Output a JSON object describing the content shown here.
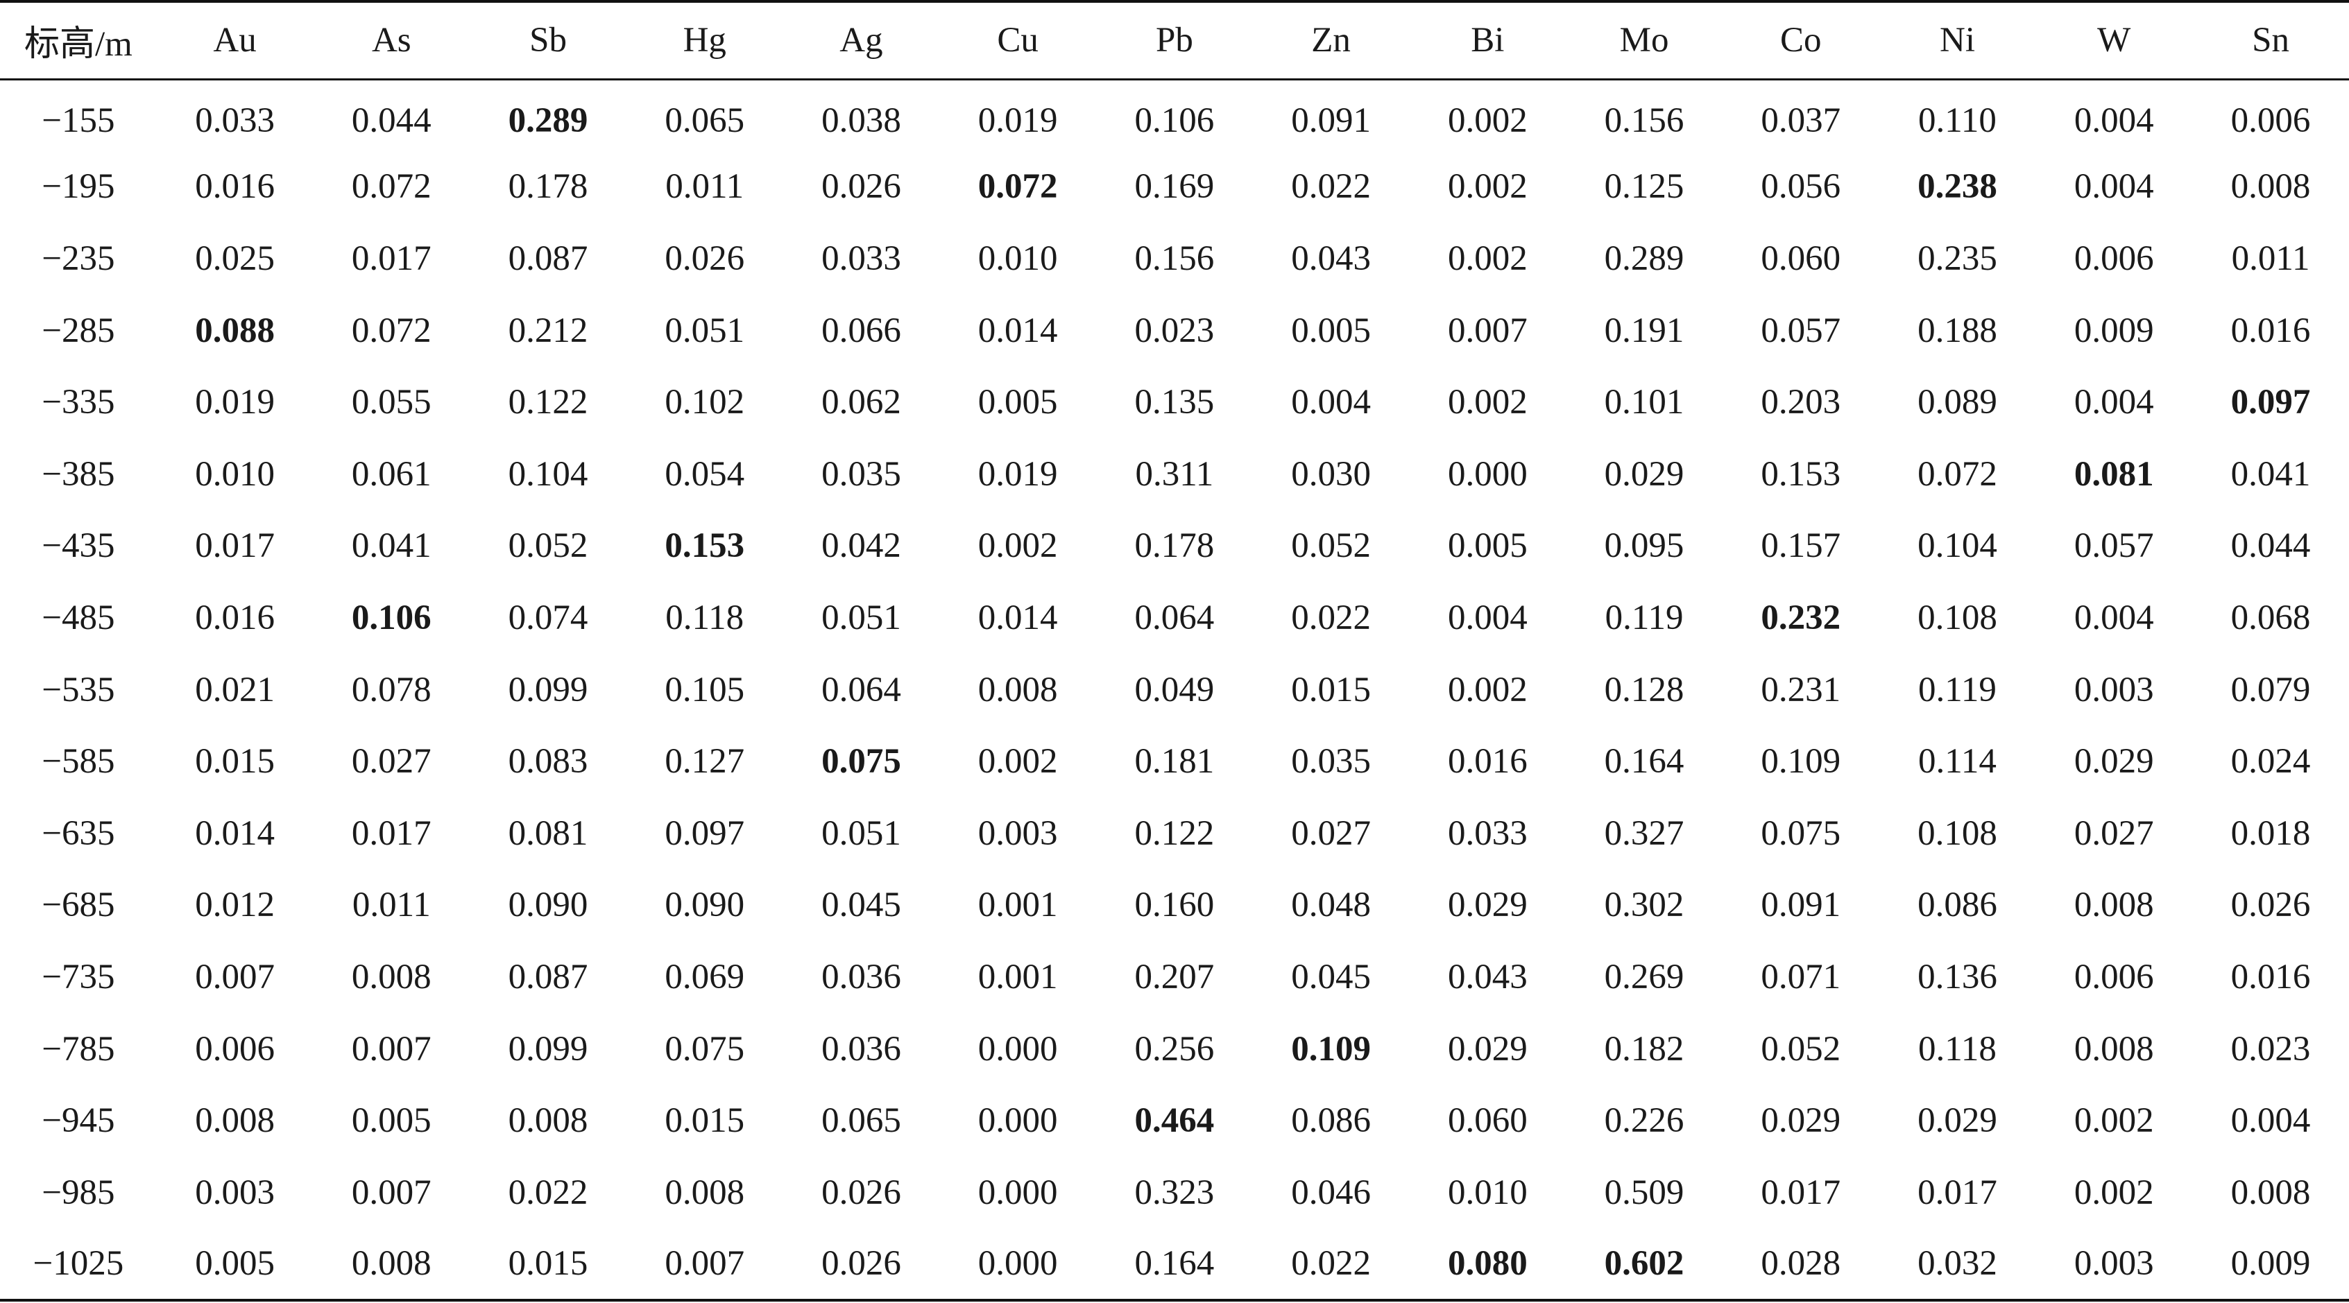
{
  "table": {
    "headers": [
      "标高/m",
      "Au",
      "As",
      "Sb",
      "Hg",
      "Ag",
      "Cu",
      "Pb",
      "Zn",
      "Bi",
      "Mo",
      "Co",
      "Ni",
      "W",
      "Sn"
    ],
    "rows": [
      [
        "−155",
        "0.033",
        "0.044",
        "0.289",
        "0.065",
        "0.038",
        "0.019",
        "0.106",
        "0.091",
        "0.002",
        "0.156",
        "0.037",
        "0.110",
        "0.004",
        "0.006"
      ],
      [
        "−195",
        "0.016",
        "0.072",
        "0.178",
        "0.011",
        "0.026",
        "0.072",
        "0.169",
        "0.022",
        "0.002",
        "0.125",
        "0.056",
        "0.238",
        "0.004",
        "0.008"
      ],
      [
        "−235",
        "0.025",
        "0.017",
        "0.087",
        "0.026",
        "0.033",
        "0.010",
        "0.156",
        "0.043",
        "0.002",
        "0.289",
        "0.060",
        "0.235",
        "0.006",
        "0.011"
      ],
      [
        "−285",
        "0.088",
        "0.072",
        "0.212",
        "0.051",
        "0.066",
        "0.014",
        "0.023",
        "0.005",
        "0.007",
        "0.191",
        "0.057",
        "0.188",
        "0.009",
        "0.016"
      ],
      [
        "−335",
        "0.019",
        "0.055",
        "0.122",
        "0.102",
        "0.062",
        "0.005",
        "0.135",
        "0.004",
        "0.002",
        "0.101",
        "0.203",
        "0.089",
        "0.004",
        "0.097"
      ],
      [
        "−385",
        "0.010",
        "0.061",
        "0.104",
        "0.054",
        "0.035",
        "0.019",
        "0.311",
        "0.030",
        "0.000",
        "0.029",
        "0.153",
        "0.072",
        "0.081",
        "0.041"
      ],
      [
        "−435",
        "0.017",
        "0.041",
        "0.052",
        "0.153",
        "0.042",
        "0.002",
        "0.178",
        "0.052",
        "0.005",
        "0.095",
        "0.157",
        "0.104",
        "0.057",
        "0.044"
      ],
      [
        "−485",
        "0.016",
        "0.106",
        "0.074",
        "0.118",
        "0.051",
        "0.014",
        "0.064",
        "0.022",
        "0.004",
        "0.119",
        "0.232",
        "0.108",
        "0.004",
        "0.068"
      ],
      [
        "−535",
        "0.021",
        "0.078",
        "0.099",
        "0.105",
        "0.064",
        "0.008",
        "0.049",
        "0.015",
        "0.002",
        "0.128",
        "0.231",
        "0.119",
        "0.003",
        "0.079"
      ],
      [
        "−585",
        "0.015",
        "0.027",
        "0.083",
        "0.127",
        "0.075",
        "0.002",
        "0.181",
        "0.035",
        "0.016",
        "0.164",
        "0.109",
        "0.114",
        "0.029",
        "0.024"
      ],
      [
        "−635",
        "0.014",
        "0.017",
        "0.081",
        "0.097",
        "0.051",
        "0.003",
        "0.122",
        "0.027",
        "0.033",
        "0.327",
        "0.075",
        "0.108",
        "0.027",
        "0.018"
      ],
      [
        "−685",
        "0.012",
        "0.011",
        "0.090",
        "0.090",
        "0.045",
        "0.001",
        "0.160",
        "0.048",
        "0.029",
        "0.302",
        "0.091",
        "0.086",
        "0.008",
        "0.026"
      ],
      [
        "−735",
        "0.007",
        "0.008",
        "0.087",
        "0.069",
        "0.036",
        "0.001",
        "0.207",
        "0.045",
        "0.043",
        "0.269",
        "0.071",
        "0.136",
        "0.006",
        "0.016"
      ],
      [
        "−785",
        "0.006",
        "0.007",
        "0.099",
        "0.075",
        "0.036",
        "0.000",
        "0.256",
        "0.109",
        "0.029",
        "0.182",
        "0.052",
        "0.118",
        "0.008",
        "0.023"
      ],
      [
        "−945",
        "0.008",
        "0.005",
        "0.008",
        "0.015",
        "0.065",
        "0.000",
        "0.464",
        "0.086",
        "0.060",
        "0.226",
        "0.029",
        "0.029",
        "0.002",
        "0.004"
      ],
      [
        "−985",
        "0.003",
        "0.007",
        "0.022",
        "0.008",
        "0.026",
        "0.000",
        "0.323",
        "0.046",
        "0.010",
        "0.509",
        "0.017",
        "0.017",
        "0.002",
        "0.008"
      ],
      [
        "−1025",
        "0.005",
        "0.008",
        "0.015",
        "0.007",
        "0.026",
        "0.000",
        "0.164",
        "0.022",
        "0.080",
        "0.602",
        "0.028",
        "0.032",
        "0.003",
        "0.009"
      ]
    ],
    "bold_cells": [
      [
        0,
        3
      ],
      [
        1,
        6
      ],
      [
        1,
        12
      ],
      [
        3,
        1
      ],
      [
        4,
        14
      ],
      [
        5,
        13
      ],
      [
        6,
        4
      ],
      [
        7,
        2
      ],
      [
        7,
        11
      ],
      [
        9,
        5
      ],
      [
        13,
        8
      ],
      [
        14,
        7
      ],
      [
        16,
        9
      ],
      [
        16,
        10
      ]
    ]
  }
}
